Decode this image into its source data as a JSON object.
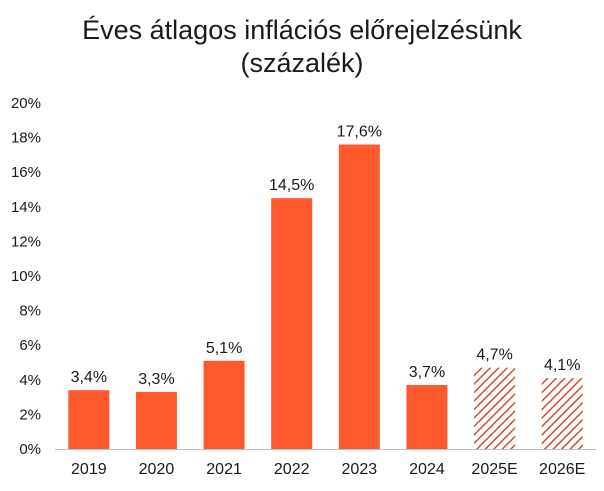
{
  "chart_data": {
    "type": "bar",
    "title_line1": "Éves átlagos inflációs előrejelzésünk",
    "title_line2": "(százalék)",
    "categories": [
      "2019",
      "2020",
      "2021",
      "2022",
      "2023",
      "2024",
      "2025E",
      "2026E"
    ],
    "values": [
      3.4,
      3.3,
      5.1,
      14.5,
      17.6,
      3.7,
      4.7,
      4.1
    ],
    "value_labels": [
      "3,4%",
      "3,3%",
      "5,1%",
      "14,5%",
      "17,6%",
      "3,7%",
      "4,7%",
      "4,1%"
    ],
    "forecast": [
      false,
      false,
      false,
      false,
      false,
      false,
      true,
      true
    ],
    "ylim": [
      0,
      20
    ],
    "yticks": [
      0,
      2,
      4,
      6,
      8,
      10,
      12,
      14,
      16,
      18,
      20
    ],
    "ytick_labels": [
      "0%",
      "2%",
      "4%",
      "6%",
      "8%",
      "10%",
      "12%",
      "14%",
      "16%",
      "18%",
      "20%"
    ],
    "grid": false,
    "legend": "none",
    "colors": {
      "bar": "#FF5A2D",
      "hatch": "#C9502F",
      "text": "#1a1a1a"
    }
  }
}
